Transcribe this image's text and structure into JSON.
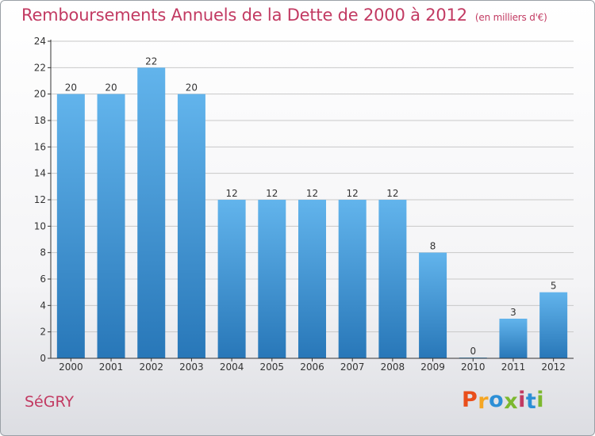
{
  "title": "Remboursements Annuels de la Dette de 2000 à 2012",
  "subtitle": "(en milliers d'€)",
  "town": "SéGRY",
  "logo": {
    "letters": [
      "P",
      "r",
      "o",
      "x",
      "i",
      "t",
      "i"
    ],
    "colors": [
      "#e94e1b",
      "#f5a623",
      "#2c8fd6",
      "#7cb82f",
      "#c23a62",
      "#2c8fd6",
      "#7cb82f"
    ]
  },
  "colors": {
    "title": "#c23a62",
    "bar_top": "#62b4ec",
    "bar_bottom": "#2877b8",
    "axis": "#333333",
    "grid": "#c8c8c8"
  },
  "chart_data": {
    "type": "bar",
    "categories": [
      "2000",
      "2001",
      "2002",
      "2003",
      "2004",
      "2005",
      "2006",
      "2007",
      "2008",
      "2009",
      "2010",
      "2011",
      "2012"
    ],
    "values": [
      20,
      20,
      22,
      20,
      12,
      12,
      12,
      12,
      12,
      8,
      0,
      3,
      5
    ],
    "data_labels": [
      "20",
      "20",
      "22",
      "20",
      "12",
      "12",
      "12",
      "12",
      "12",
      "8",
      "0",
      "3",
      "5"
    ],
    "ylim": [
      0,
      24
    ],
    "yticks": [
      0,
      2,
      4,
      6,
      8,
      10,
      12,
      14,
      16,
      18,
      20,
      22,
      24
    ],
    "grid": true,
    "xlabel": "",
    "ylabel": ""
  }
}
